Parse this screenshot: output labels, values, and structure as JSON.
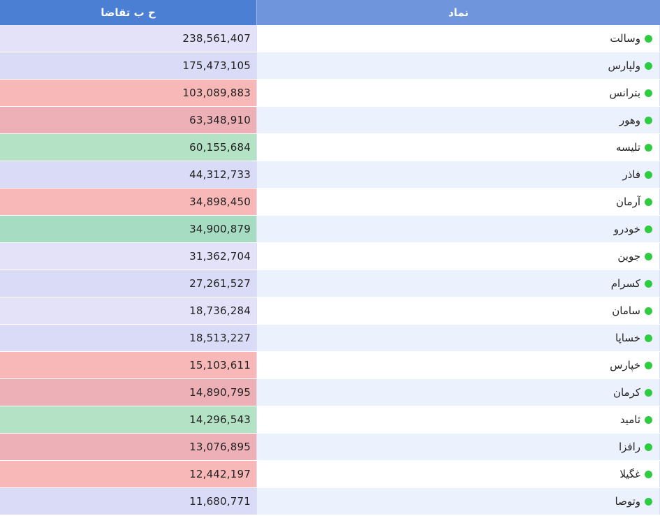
{
  "header": {
    "value_label": "ح ب تقاضا",
    "symbol_label": "نماد"
  },
  "status_color": "#2ecc40",
  "rows": [
    {
      "symbol": "وسالت",
      "value": "238,561,407",
      "color": "#e4e2f8"
    },
    {
      "symbol": "ولپارس",
      "value": "175,473,105",
      "color": "#dadcf7"
    },
    {
      "symbol": "بترانس",
      "value": "103,089,883",
      "color": "#f9b8b8"
    },
    {
      "symbol": "وهور",
      "value": "63,348,910",
      "color": "#ecb0b6"
    },
    {
      "symbol": "تلیسه",
      "value": "60,155,684",
      "color": "#b4e2c4"
    },
    {
      "symbol": "فاذر",
      "value": "44,312,733",
      "color": "#dadcf7"
    },
    {
      "symbol": "آرمان",
      "value": "34,898,450",
      "color": "#f9b8b8"
    },
    {
      "symbol": "خودرو",
      "value": "34,900,879",
      "color": "#a6dcc2"
    },
    {
      "symbol": "جوین",
      "value": "31,362,704",
      "color": "#e4e2f8"
    },
    {
      "symbol": "کسرام",
      "value": "27,261,527",
      "color": "#dadcf7"
    },
    {
      "symbol": "سامان",
      "value": "18,736,284",
      "color": "#e4e2f8"
    },
    {
      "symbol": "خساپا",
      "value": "18,513,227",
      "color": "#dadcf7"
    },
    {
      "symbol": "خپارس",
      "value": "15,103,611",
      "color": "#f9b8b8"
    },
    {
      "symbol": "کرمان",
      "value": "14,890,795",
      "color": "#ecb0b6"
    },
    {
      "symbol": "ثامید",
      "value": "14,296,543",
      "color": "#b4e2c4"
    },
    {
      "symbol": "رافزا",
      "value": "13,076,895",
      "color": "#ecb0b6"
    },
    {
      "symbol": "غگیلا",
      "value": "12,442,197",
      "color": "#f9b8b8"
    },
    {
      "symbol": "وتوصا",
      "value": "11,680,771",
      "color": "#dadcf7"
    }
  ]
}
